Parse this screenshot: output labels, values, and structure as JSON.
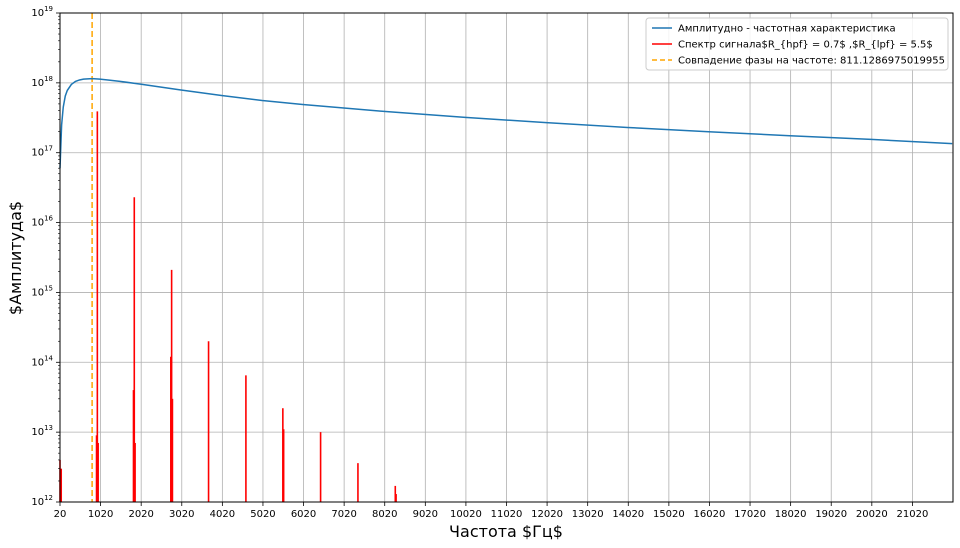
{
  "chart_data": {
    "type": "line",
    "title": "",
    "xlabel": "Частота $Гц$",
    "ylabel": "$Амплитуда$",
    "xlim": [
      20,
      22020
    ],
    "ylim_exponent": [
      12,
      19
    ],
    "yscale": "log",
    "grid": true,
    "legend_position": "top-right",
    "x_ticks": [
      "20",
      "1020",
      "2020",
      "3020",
      "4020",
      "5020",
      "6020",
      "7020",
      "8020",
      "9020",
      "10020",
      "11020",
      "12020",
      "13020",
      "14020",
      "15020",
      "16020",
      "17020",
      "18020",
      "19020",
      "20020",
      "21020"
    ],
    "y_ticks": [
      {
        "base": "10",
        "exp": "12"
      },
      {
        "base": "10",
        "exp": "13"
      },
      {
        "base": "10",
        "exp": "14"
      },
      {
        "base": "10",
        "exp": "15"
      },
      {
        "base": "10",
        "exp": "16"
      },
      {
        "base": "10",
        "exp": "17"
      },
      {
        "base": "10",
        "exp": "18"
      },
      {
        "base": "10",
        "exp": "19"
      }
    ],
    "legend": [
      {
        "label": "Амплитудно - частотная характеристика",
        "color": "#1f77b4",
        "style": "solid"
      },
      {
        "label": "Спектр сигнала$R_{hpf} = 0.7$ ,$R_{lpf} = 5.5$",
        "color": "#ff0000",
        "style": "solid"
      },
      {
        "label": "Совпадение фазы на частоте: 811.1286975019955",
        "color": "#ffa500",
        "style": "dashed"
      }
    ],
    "series": [
      {
        "name": "Амплитудно - частотная характеристика",
        "color": "#1f77b4",
        "x": [
          20,
          60,
          100,
          150,
          200,
          300,
          400,
          500,
          600,
          700,
          811,
          1000,
          1200,
          1500,
          2000,
          3000,
          4000,
          5000,
          6000,
          8000,
          10000,
          12000,
          14000,
          16000,
          18000,
          20000,
          22000
        ],
        "y": [
          6e+16,
          2.5e+17,
          4.5e+17,
          6.5e+17,
          7.8e+17,
          9.5e+17,
          1.05e+18,
          1.1e+18,
          1.13e+18,
          1.14e+18,
          1.15e+18,
          1.13e+18,
          1.1e+18,
          1.05e+18,
          9.6e+17,
          7.9e+17,
          6.6e+17,
          5.6e+17,
          4.9e+17,
          3.9e+17,
          3.2e+17,
          2.7e+17,
          2.3e+17,
          2e+17,
          1.75e+17,
          1.55e+17,
          1.35e+17
        ]
      },
      {
        "name": "Спектр сигнала$R_{hpf} = 0.7$ ,$R_{lpf} = 5.5$",
        "color": "#ff0000",
        "type": "spikes",
        "x": [
          20,
          50,
          920,
          940,
          960,
          1830,
          1850,
          1870,
          2750,
          2770,
          2790,
          3680,
          4600,
          5510,
          5530,
          6440,
          7360,
          8280,
          8300
        ],
        "y": [
          4000000000000.0,
          3000000000000.0,
          9000000000000.0,
          3.9e+17,
          7000000000000.0,
          40000000000000.0,
          2.3e+16,
          7000000000000.0,
          120000000000000.0,
          2100000000000000.0,
          30000000000000.0,
          200000000000000.0,
          65000000000000.0,
          22000000000000.0,
          11000000000000.0,
          10000000000000.0,
          3600000000000.0,
          1700000000000.0,
          1300000000000.0
        ]
      }
    ],
    "phase_match_x": 811.1286975019955
  }
}
